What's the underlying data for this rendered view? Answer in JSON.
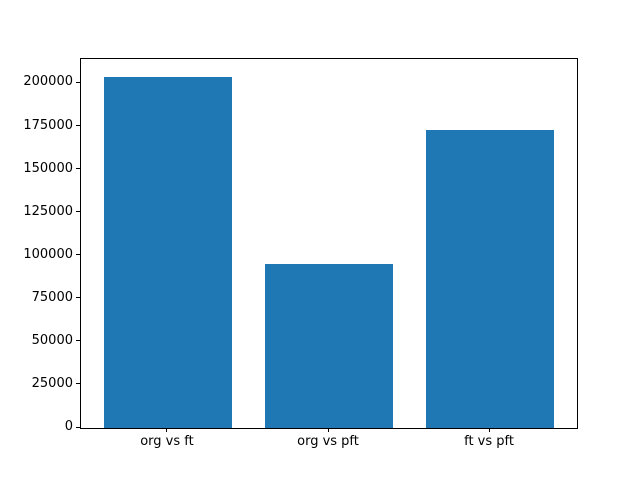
{
  "figure": {
    "background": "#ffffff",
    "spine_color": "#000000",
    "tick_color": "#000000"
  },
  "chart_data": {
    "type": "bar",
    "title": "",
    "xlabel": "",
    "ylabel": "",
    "categories": [
      "org vs ft",
      "org vs pft",
      "ft vs pft"
    ],
    "values": [
      204000,
      95000,
      173000
    ],
    "bar_color": "#1f77b4",
    "bar_width": 0.8,
    "xlim": [
      -0.54,
      2.54
    ],
    "ylim": [
      0,
      214200
    ],
    "yticks": [
      0,
      25000,
      50000,
      75000,
      100000,
      125000,
      150000,
      175000,
      200000
    ],
    "ytick_labels": [
      "0",
      "25000",
      "50000",
      "75000",
      "100000",
      "125000",
      "150000",
      "175000",
      "200000"
    ],
    "grid": false,
    "legend": false
  }
}
